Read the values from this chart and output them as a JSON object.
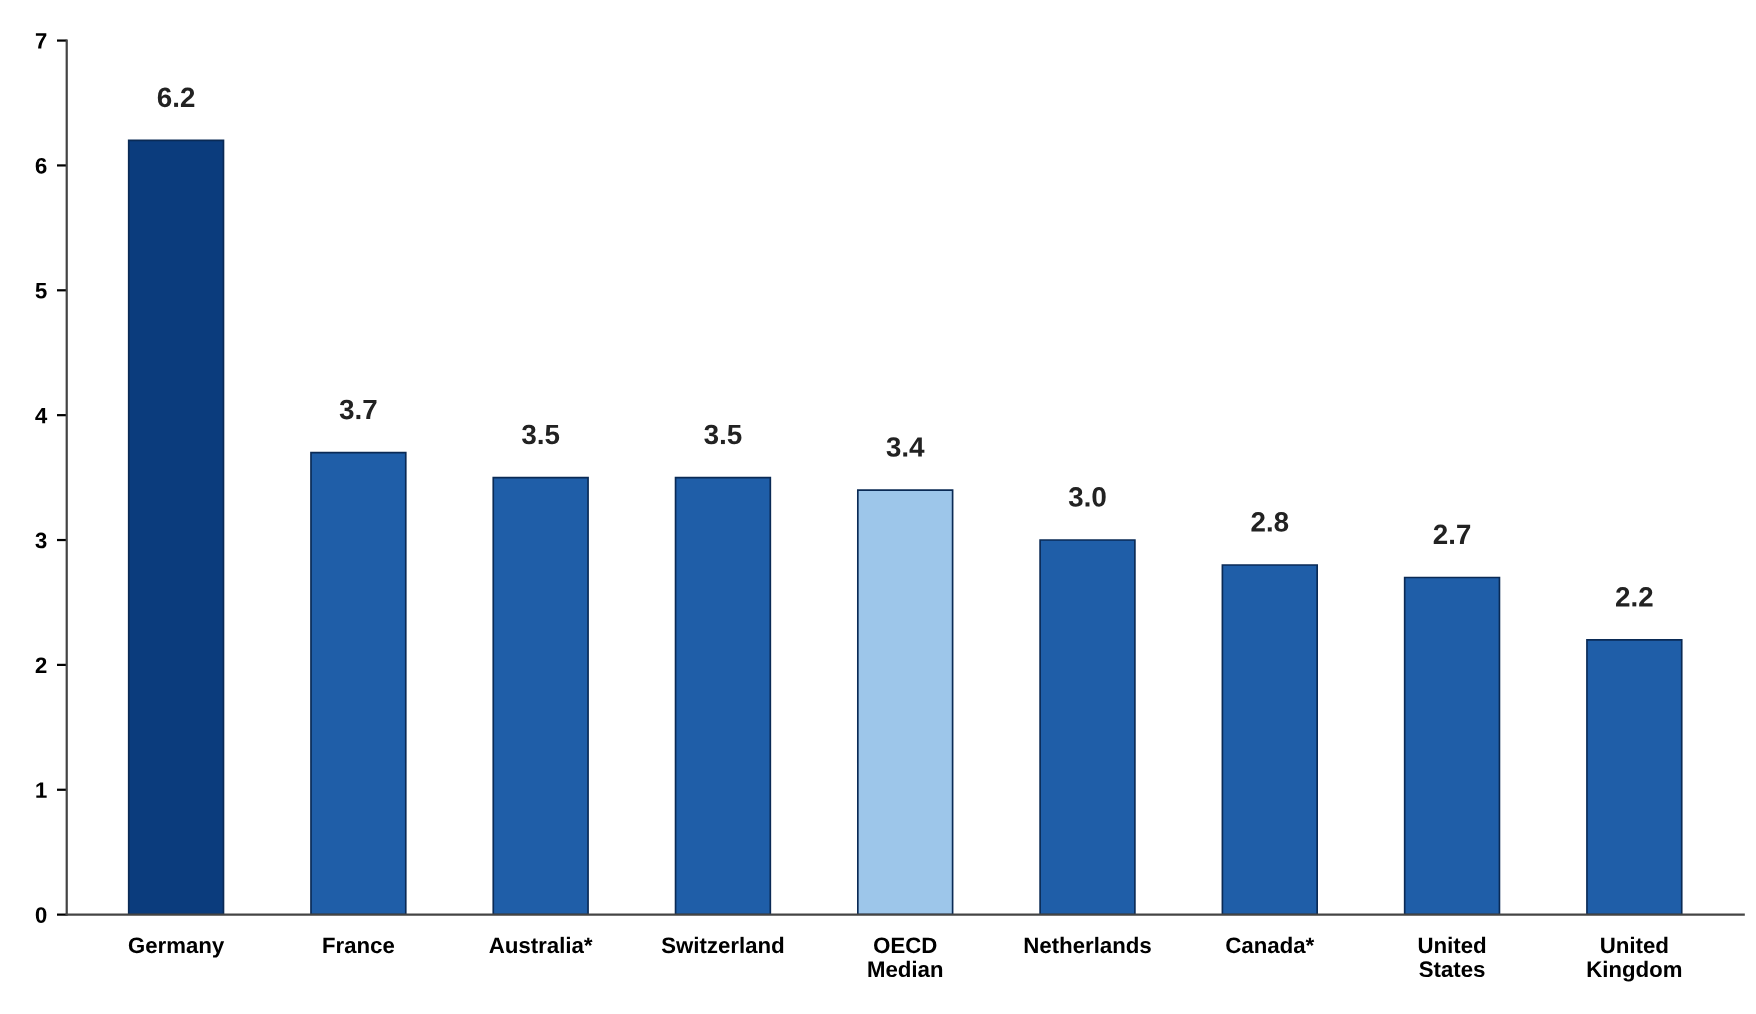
{
  "chart_data": {
    "type": "bar",
    "categories": [
      "Germany",
      "France",
      "Australia*",
      "Switzerland",
      "OECD\nMedian",
      "Netherlands",
      "Canada*",
      "United\nStates",
      "United\nKingdom"
    ],
    "values": [
      6.2,
      3.7,
      3.5,
      3.5,
      3.4,
      3.0,
      2.8,
      2.7,
      2.2
    ],
    "value_labels": [
      "6.2",
      "3.7",
      "3.5",
      "3.5",
      "3.4",
      "3.0",
      "2.8",
      "2.7",
      "2.2"
    ],
    "colors": [
      "#0b3c7d",
      "#1f5ea8",
      "#1f5ea8",
      "#1f5ea8",
      "#9dc6ea",
      "#1f5ea8",
      "#1f5ea8",
      "#1f5ea8",
      "#1f5ea8"
    ],
    "ylim": [
      0,
      7
    ],
    "yticks": [
      0,
      1,
      2,
      3,
      4,
      5,
      6,
      7
    ],
    "grid": false,
    "legend": false
  }
}
